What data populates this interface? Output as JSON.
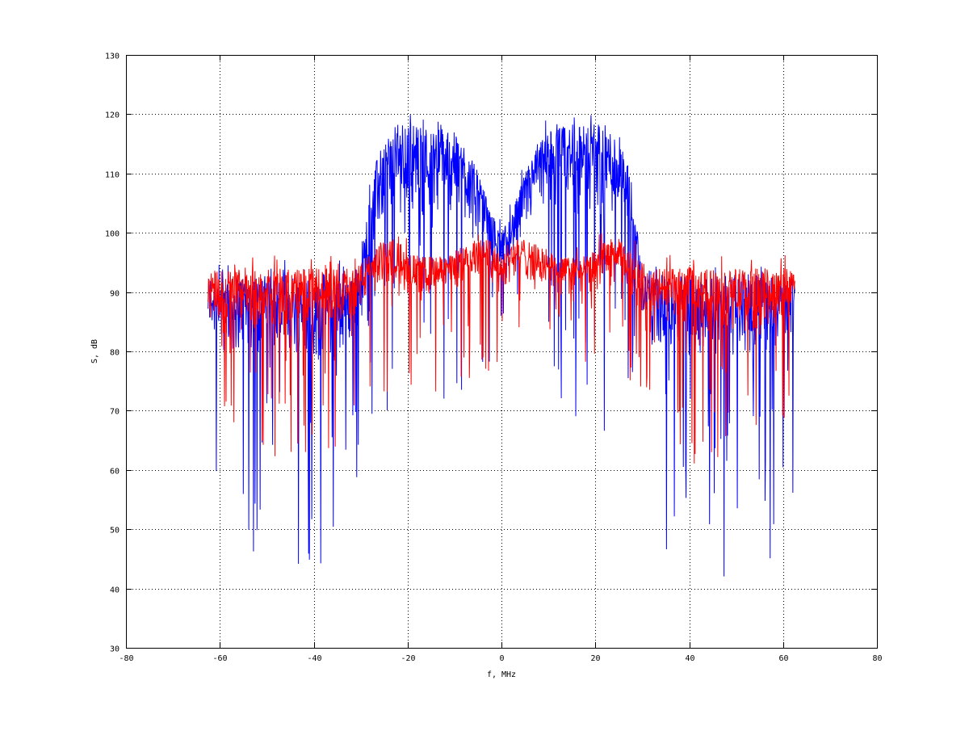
{
  "chart_data": {
    "type": "line",
    "title": "",
    "xlabel": "f, MHz",
    "ylabel": "S, dB",
    "xlim": [
      -80,
      80
    ],
    "ylim": [
      30,
      130
    ],
    "xticks": [
      "-80",
      "-60",
      "-40",
      "-20",
      "0",
      "20",
      "40",
      "60",
      "80"
    ],
    "yticks": [
      "30",
      "40",
      "50",
      "60",
      "70",
      "80",
      "90",
      "100",
      "110",
      "120",
      "130"
    ],
    "grid": true,
    "legend": "none",
    "x": [
      -62.5,
      -60,
      -57.5,
      -55,
      -52.5,
      -50,
      -47.5,
      -45,
      -42.5,
      -40,
      -37.5,
      -35,
      -32.5,
      -30,
      -27.5,
      -25,
      -22.5,
      -20,
      -17.5,
      -15,
      -12.5,
      -10,
      -7.5,
      -5,
      -2.5,
      0,
      2.5,
      5,
      7.5,
      10,
      12.5,
      15,
      17.5,
      20,
      22.5,
      25,
      27.5,
      30,
      32.5,
      35,
      37.5,
      40,
      42.5,
      45,
      47.5,
      50,
      52.5,
      55,
      57.5,
      60,
      62.5
    ],
    "series": [
      {
        "color": "#0000ff",
        "upper": [
          93,
          93,
          93,
          93,
          93,
          93,
          93,
          93,
          93,
          93,
          93,
          93,
          93,
          95,
          110,
          116,
          118,
          119,
          118,
          118,
          118,
          117,
          115,
          110,
          104,
          100,
          104,
          110,
          115,
          117,
          118,
          118,
          118,
          119,
          118,
          116,
          110,
          95,
          93,
          93,
          93,
          93,
          93,
          93,
          93,
          93,
          93,
          93,
          93,
          93,
          93
        ],
        "lower": [
          55,
          50,
          45,
          48,
          45,
          47,
          40,
          42,
          45,
          40,
          40,
          45,
          50,
          60,
          64,
          65,
          66,
          66,
          67,
          67,
          68,
          68,
          70,
          72,
          74,
          76,
          74,
          72,
          70,
          68,
          68,
          67,
          67,
          66,
          66,
          65,
          64,
          60,
          50,
          45,
          40,
          40,
          45,
          40,
          42,
          45,
          48,
          45,
          45,
          50,
          55
        ]
      },
      {
        "color": "#ff0000",
        "upper": [
          94,
          94,
          94,
          94,
          94,
          94,
          94,
          94,
          94,
          94,
          94,
          94,
          94,
          95,
          97,
          99,
          99,
          97,
          96,
          96,
          96,
          97,
          98,
          99,
          99,
          97,
          99,
          99,
          98,
          97,
          96,
          96,
          96,
          97,
          99,
          99,
          97,
          95,
          94,
          94,
          94,
          94,
          94,
          94,
          94,
          94,
          94,
          94,
          94,
          94,
          94
        ],
        "lower": [
          66,
          62,
          60,
          58,
          55,
          60,
          58,
          60,
          62,
          60,
          60,
          62,
          64,
          66,
          70,
          72,
          72,
          72,
          73,
          73,
          73,
          73,
          74,
          75,
          75,
          74,
          75,
          75,
          74,
          73,
          73,
          73,
          73,
          72,
          72,
          72,
          70,
          66,
          64,
          62,
          60,
          60,
          62,
          60,
          58,
          60,
          55,
          58,
          60,
          62,
          66
        ]
      }
    ]
  }
}
